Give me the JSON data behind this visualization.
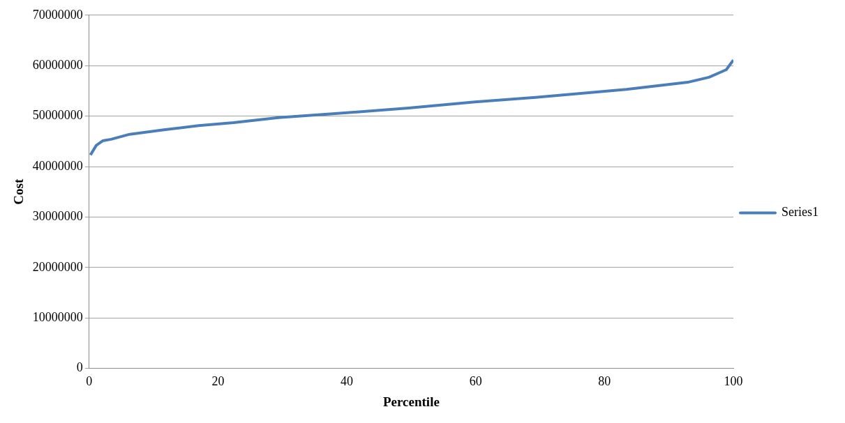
{
  "chart_data": {
    "type": "line",
    "xlabel": "Percentile",
    "ylabel": "Cost",
    "x": [
      0.2,
      1.1,
      2.1,
      3.4,
      6.3,
      11.6,
      17,
      22.4,
      29.4,
      39.3,
      49.6,
      59.9,
      70.2,
      83.4,
      92.9,
      96.2,
      98.9,
      100
    ],
    "series": [
      {
        "name": "Series1",
        "color": "#4a7ebb",
        "values": [
          42300000,
          44200000,
          45100000,
          45400000,
          46400000,
          47300000,
          48100000,
          48700000,
          49700000,
          50600000,
          51600000,
          52800000,
          53800000,
          55300000,
          56700000,
          57700000,
          59200000,
          61100000
        ]
      }
    ],
    "xlim": [
      0,
      100
    ],
    "xticks": [
      0,
      20,
      40,
      60,
      80,
      100
    ],
    "ylim": [
      0,
      70000000
    ],
    "yticks": [
      0,
      10000000,
      20000000,
      30000000,
      40000000,
      50000000,
      60000000,
      70000000
    ],
    "grid": "y",
    "legend": "right",
    "marker": "none",
    "line_style": "solid"
  }
}
